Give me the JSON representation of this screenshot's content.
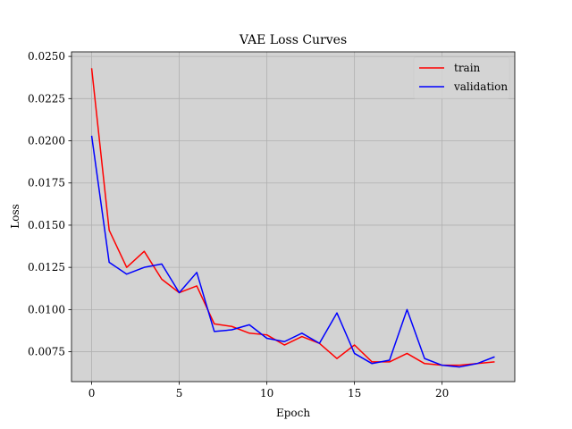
{
  "chart_data": {
    "type": "line",
    "title": "VAE Loss Curves",
    "xlabel": "Epoch",
    "ylabel": "Loss",
    "xlim": [
      -1.15,
      24.15
    ],
    "ylim": [
      0.00573,
      0.02527
    ],
    "xticks": [
      0,
      5,
      10,
      15,
      20
    ],
    "xtick_labels": [
      "0",
      "5",
      "10",
      "15",
      "20"
    ],
    "yticks": [
      0.0075,
      0.01,
      0.0125,
      0.015,
      0.0175,
      0.02,
      0.0225,
      0.025
    ],
    "ytick_labels": [
      "0.0075",
      "0.0100",
      "0.0125",
      "0.0150",
      "0.0175",
      "0.0200",
      "0.0225",
      "0.0250"
    ],
    "grid": true,
    "legend_position": "top-right",
    "colors": {
      "plot_background": "#d3d3d3",
      "grid": "#b0b0b0",
      "train": "#ff0000",
      "validation": "#0000ff"
    },
    "x": [
      0,
      1,
      2,
      3,
      4,
      5,
      6,
      7,
      8,
      9,
      10,
      11,
      12,
      13,
      14,
      15,
      16,
      17,
      18,
      19,
      20,
      21,
      22,
      23
    ],
    "series": [
      {
        "name": "train",
        "values": [
          0.0243,
          0.0147,
          0.0125,
          0.01345,
          0.0118,
          0.011,
          0.0114,
          0.00915,
          0.009,
          0.0086,
          0.0085,
          0.0079,
          0.0084,
          0.008,
          0.0071,
          0.0079,
          0.0069,
          0.0069,
          0.0074,
          0.0068,
          0.0067,
          0.0067,
          0.0068,
          0.0069
        ]
      },
      {
        "name": "validation",
        "values": [
          0.0203,
          0.0128,
          0.0121,
          0.0125,
          0.0127,
          0.011,
          0.0122,
          0.0087,
          0.0088,
          0.0091,
          0.0083,
          0.0081,
          0.0086,
          0.008,
          0.0098,
          0.0074,
          0.0068,
          0.007,
          0.01,
          0.0071,
          0.0067,
          0.0066,
          0.0068,
          0.0072
        ]
      }
    ]
  }
}
